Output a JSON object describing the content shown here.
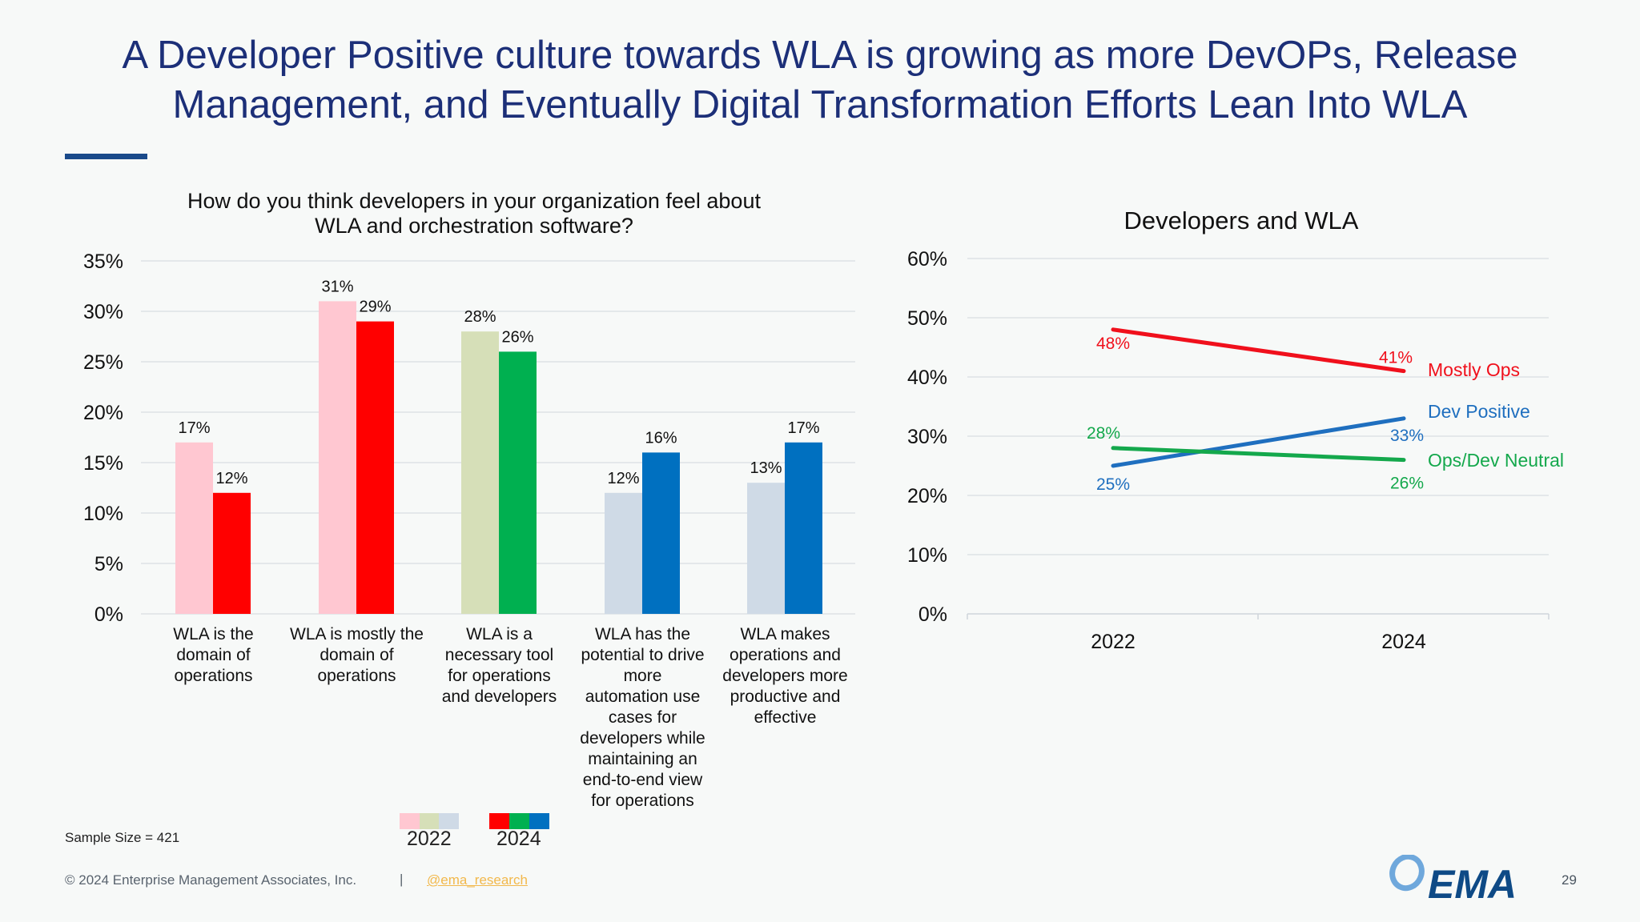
{
  "title": "A Developer Positive culture towards WLA is growing as more DevOPs, Release\nManagement, and Eventually Digital Transformation Efforts Lean Into WLA",
  "chart_data": [
    {
      "type": "bar",
      "title": "How do you think developers in your organization feel about\nWLA and orchestration software?",
      "categories": [
        "WLA is the\ndomain of\noperations",
        "WLA is mostly the\ndomain of\noperations",
        "WLA is a\nnecessary tool\nfor operations\nand developers",
        "WLA has the\npotential to drive\nmore\nautomation use\ncases for\ndevelopers while\nmaintaining an\nend-to-end view\nfor operations",
        "WLA makes\noperations and\ndevelopers more\nproductive and\neffective"
      ],
      "series": [
        {
          "name": "2022",
          "values": [
            17,
            31,
            28,
            12,
            13
          ],
          "labels": [
            "17%",
            "31%",
            "28%",
            "12%",
            "13%"
          ],
          "colors": [
            "#ffc7d1",
            "#ffc7d1",
            "#d6dfb8",
            "#cfdae6",
            "#cfdae6"
          ]
        },
        {
          "name": "2024",
          "values": [
            12,
            29,
            26,
            16,
            17
          ],
          "labels": [
            "12%",
            "29%",
            "26%",
            "16%",
            "17%"
          ],
          "colors": [
            "#ff0000",
            "#ff0000",
            "#00b050",
            "#0070c0",
            "#0070c0"
          ]
        }
      ],
      "yticks": [
        "0%",
        "5%",
        "10%",
        "15%",
        "20%",
        "25%",
        "30%",
        "35%"
      ],
      "ylim": [
        0,
        35
      ],
      "grid": true,
      "legend": "bottom"
    },
    {
      "type": "line",
      "title": "Developers and WLA",
      "x": [
        "2022",
        "2024"
      ],
      "series": [
        {
          "name": "Mostly Ops",
          "values": [
            48,
            41
          ],
          "labels": [
            "48%",
            "41%"
          ],
          "color": "#f0101c"
        },
        {
          "name": "Dev Positive",
          "values": [
            25,
            33
          ],
          "labels": [
            "25%",
            "33%"
          ],
          "color": "#1f6fbf"
        },
        {
          "name": "Ops/Dev Neutral",
          "values": [
            28,
            26
          ],
          "labels": [
            "28%",
            "26%"
          ],
          "color": "#14a84c"
        }
      ],
      "yticks": [
        "0%",
        "10%",
        "20%",
        "30%",
        "40%",
        "50%",
        "60%"
      ],
      "ylim": [
        0,
        60
      ],
      "grid": true,
      "legend": "inline-right"
    }
  ],
  "footer": {
    "sample_size": "Sample Size = 421",
    "copyright": "© 2024 Enterprise Management Associates, Inc.",
    "separator": "|",
    "handle": "@ema_research",
    "page_number": "29",
    "logo_text": "EMA"
  }
}
